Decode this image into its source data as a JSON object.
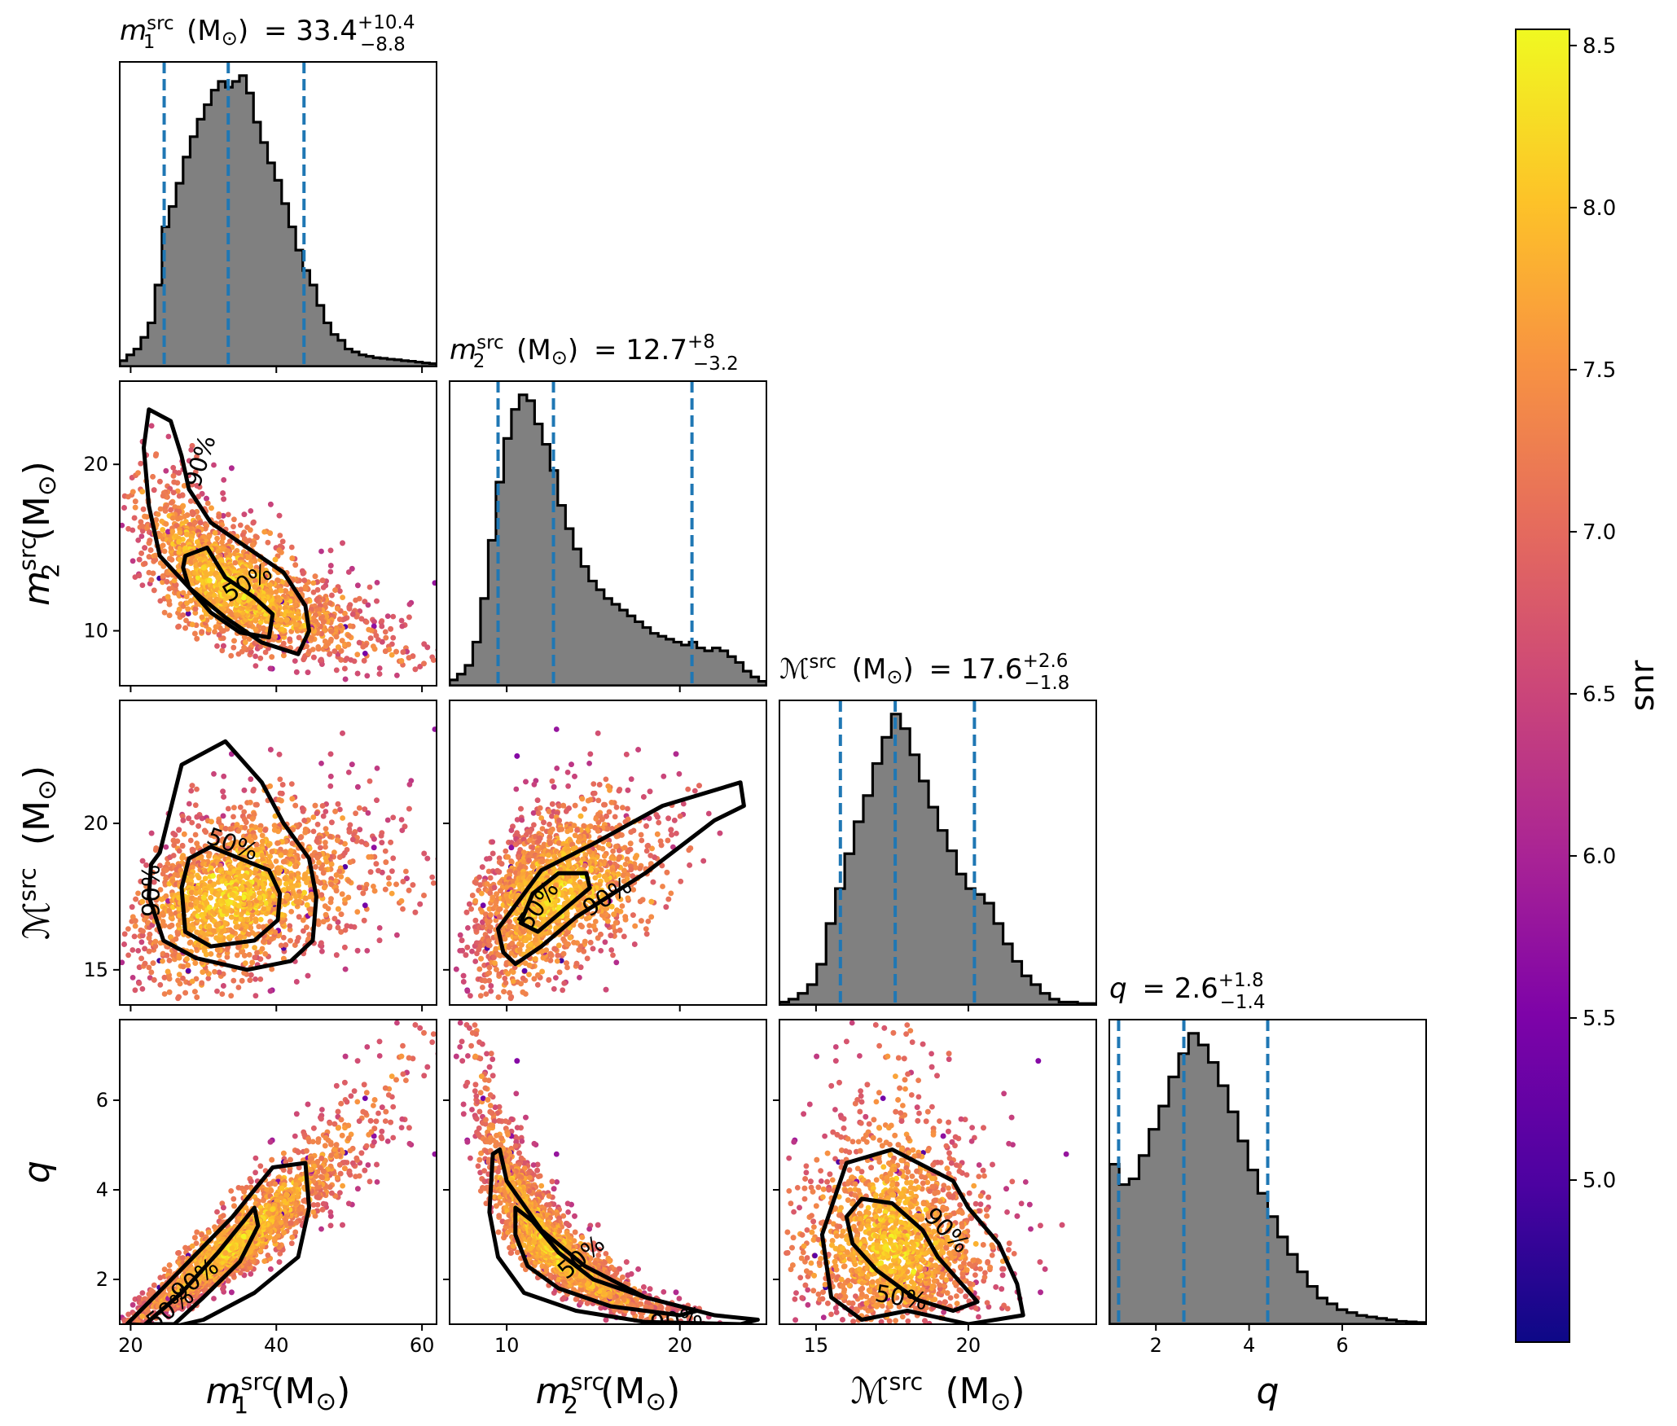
{
  "figure": {
    "colors": {
      "hist_fill": "#808080",
      "hist_edge": "#000000",
      "quantile_line": "#1f77b4",
      "contour": "#000000"
    },
    "colormap": "plasma",
    "colorbar": {
      "label": "snr",
      "range": [
        4.5,
        8.55
      ],
      "ticks": [
        "5.0",
        "5.5",
        "6.0",
        "6.5",
        "7.0",
        "7.5",
        "8.0",
        "8.5"
      ]
    }
  },
  "chart_data": {
    "type": "corner",
    "parameters": [
      {
        "key": "m1",
        "axis_label": {
          "main": "m",
          "sub": "1",
          "sup": "src",
          "unit": "(M",
          "sun": "⊙",
          "close": ")"
        },
        "title": {
          "sym": "m",
          "sub": "1",
          "sup": "src",
          "unit": "(M",
          "sun": "⊙",
          "close": ")",
          "eq": "= 33.4",
          "plus": "+10.4",
          "minus": "−8.8"
        },
        "range": [
          18.5,
          62
        ],
        "ticks": [
          20,
          40,
          60
        ],
        "tick_labels": [
          "20",
          "40",
          "60"
        ],
        "median": 33.4,
        "lower": 24.6,
        "upper": 43.8,
        "hist_bins": [
          0.02,
          0.04,
          0.06,
          0.1,
          0.15,
          0.28,
          0.48,
          0.55,
          0.63,
          0.72,
          0.79,
          0.85,
          0.9,
          0.95,
          0.98,
          0.96,
          0.98,
          1.0,
          0.94,
          0.84,
          0.77,
          0.7,
          0.64,
          0.56,
          0.48,
          0.4,
          0.33,
          0.28,
          0.21,
          0.15,
          0.11,
          0.09,
          0.06,
          0.05,
          0.04,
          0.035,
          0.03,
          0.028,
          0.025,
          0.023,
          0.02,
          0.018,
          0.015,
          0.012,
          0.01
        ]
      },
      {
        "key": "m2",
        "axis_label": {
          "main": "m",
          "sub": "2",
          "sup": "src",
          "unit": "(M",
          "sun": "⊙",
          "close": ")"
        },
        "title": {
          "sym": "m",
          "sub": "2",
          "sup": "src",
          "unit": "(M",
          "sun": "⊙",
          "close": ")",
          "eq": "= 12.7",
          "plus": "+8",
          "minus": "−3.2"
        },
        "range": [
          6.7,
          25
        ],
        "ticks": [
          10,
          20
        ],
        "tick_labels": [
          "10",
          "20"
        ],
        "median": 12.7,
        "lower": 9.5,
        "upper": 20.7,
        "hist_bins": [
          0.02,
          0.04,
          0.07,
          0.15,
          0.3,
          0.5,
          0.7,
          0.85,
          0.95,
          1.0,
          0.98,
          0.9,
          0.83,
          0.74,
          0.62,
          0.54,
          0.47,
          0.41,
          0.36,
          0.33,
          0.3,
          0.28,
          0.26,
          0.24,
          0.22,
          0.2,
          0.18,
          0.17,
          0.16,
          0.15,
          0.14,
          0.15,
          0.13,
          0.12,
          0.13,
          0.12,
          0.1,
          0.08,
          0.05,
          0.03,
          0.015
        ]
      },
      {
        "key": "mc",
        "axis_label": {
          "main": "ℳ",
          "sub": "",
          "sup": "src",
          "unit": "(M",
          "sun": "⊙",
          "close": ")"
        },
        "title": {
          "sym": "ℳ",
          "sub": "",
          "sup": "src",
          "unit": "(M",
          "sun": "⊙",
          "close": ")",
          "eq": "= 17.6",
          "plus": "+2.6",
          "minus": "−1.8"
        },
        "range": [
          13.8,
          24.2
        ],
        "ticks": [
          15,
          20
        ],
        "tick_labels": [
          "15",
          "20"
        ],
        "median": 17.6,
        "lower": 15.8,
        "upper": 20.2,
        "hist_bins": [
          0.01,
          0.02,
          0.04,
          0.07,
          0.14,
          0.28,
          0.4,
          0.52,
          0.63,
          0.72,
          0.83,
          0.92,
          1.0,
          0.95,
          0.86,
          0.77,
          0.68,
          0.6,
          0.53,
          0.45,
          0.4,
          0.38,
          0.35,
          0.28,
          0.21,
          0.15,
          0.1,
          0.07,
          0.04,
          0.02,
          0.01,
          0.01,
          0.005,
          0.005
        ]
      },
      {
        "key": "q",
        "axis_label": {
          "main": "q",
          "sub": "",
          "sup": "",
          "unit": "",
          "sun": "",
          "close": ""
        },
        "title": {
          "sym": "q",
          "sub": "",
          "sup": "",
          "unit": "",
          "sun": "",
          "close": "",
          "eq": "= 2.6",
          "plus": "+1.8",
          "minus": "−1.4"
        },
        "range": [
          1.0,
          7.8
        ],
        "ticks": [
          2,
          4,
          6
        ],
        "tick_labels": [
          "2",
          "4",
          "6"
        ],
        "median": 2.6,
        "lower": 1.2,
        "upper": 4.4,
        "hist_bins": [
          0.55,
          0.48,
          0.5,
          0.58,
          0.67,
          0.75,
          0.85,
          0.93,
          1.0,
          0.96,
          0.9,
          0.82,
          0.73,
          0.63,
          0.53,
          0.45,
          0.37,
          0.3,
          0.24,
          0.18,
          0.13,
          0.09,
          0.07,
          0.05,
          0.04,
          0.03,
          0.025,
          0.02,
          0.015,
          0.01,
          0.008,
          0.006
        ]
      }
    ],
    "pair_contours": {
      "levels": [
        "50%",
        "90%"
      ]
    }
  }
}
